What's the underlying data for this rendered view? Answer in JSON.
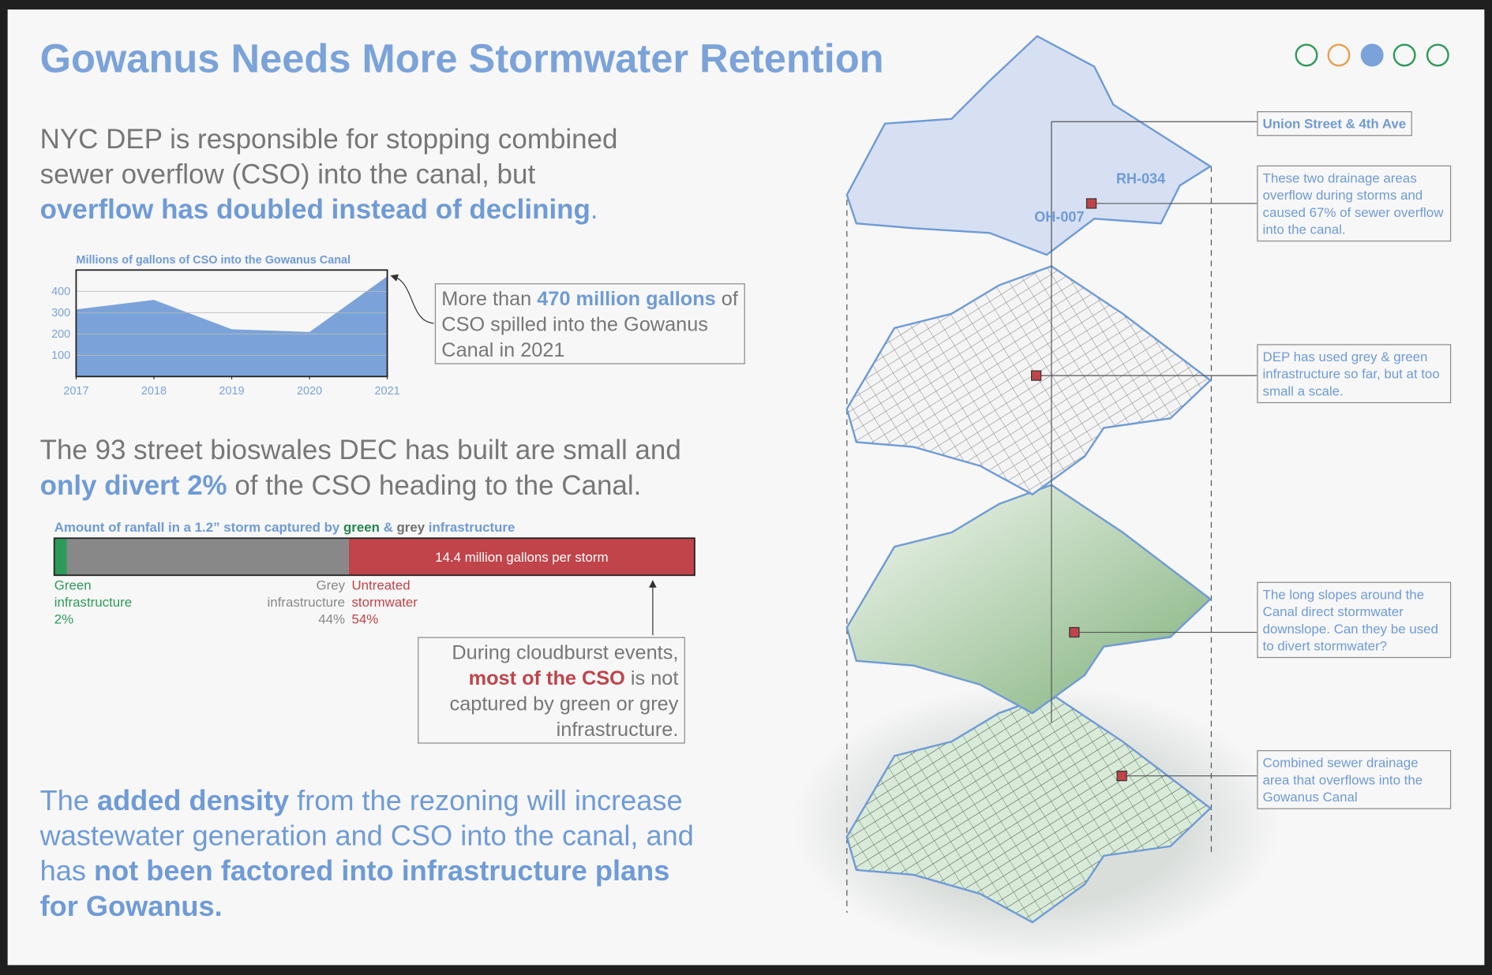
{
  "header": {
    "title": "Gowanus Needs More Stormwater Retention"
  },
  "intro": [
    "NYC DEP is responsible for stopping combined sewer overflow (CSO) into the canal, but ",
    "overflow has doubled instead of declining",
    "."
  ],
  "bioswales": [
    "The 93 street bioswales DEC has built are small and ",
    "only divert 2%",
    " of the CSO heading to the Canal."
  ],
  "density": [
    "The ",
    "added density",
    " from the rezoning will increase wastewater generation and CSO into the canal, and has ",
    "not been factored into infrastructure plans for Gowanus."
  ],
  "callout_cso": [
    "More than ",
    "470 million gallons",
    " of CSO spilled into the Gowanus Canal in 2021"
  ],
  "callout_cloudburst": [
    "During cloudburst events, ",
    "most of the CSO",
    " is not captured by green or grey infrastructure."
  ],
  "map": {
    "labels": [
      "RH-034",
      "OH-007"
    ],
    "callouts": [
      "Union Street & 4th Ave",
      "These two drainage areas overflow during storms and caused 67% of sewer overflow into the canal.",
      "DEP has used grey & green infrastructure so far, but at too small a scale.",
      "The long slopes around the Canal direct stormwater downslope. Can they be used to divert stormwater?",
      "Combined sewer drainage area that overflows into the Gowanus Canal"
    ]
  },
  "chart_data": [
    {
      "type": "area",
      "title": "Millions of gallons of CSO into the Gowanus Canal",
      "x": [
        2017,
        2018,
        2019,
        2020,
        2021
      ],
      "values": [
        315,
        360,
        222,
        209,
        470
      ],
      "color": "#7ba3d9",
      "xlim": [
        2017,
        2021
      ],
      "xticks": [
        2017,
        2018,
        2019,
        2020,
        2021
      ],
      "ylim": [
        0,
        500
      ],
      "yticks": [
        100,
        200,
        300,
        400
      ],
      "grid": true
    },
    {
      "type": "stacked-bar",
      "title_parts": [
        {
          "text": "Amount of ranfall in a 1.2” storm captured by ",
          "color": "#6f9bd6"
        },
        {
          "text": "green",
          "color": "#24864f"
        },
        {
          "text": " & ",
          "color": "#6f9bd6"
        },
        {
          "text": "grey",
          "color": "#707070"
        },
        {
          "text": " infrastructure",
          "color": "#6f9bd6"
        }
      ],
      "xlim": [
        0,
        100
      ],
      "series": [
        {
          "name": "Green infrastructure",
          "color": "#2e9a5a",
          "values": [
            2
          ],
          "value_labels": [
            "2%"
          ]
        },
        {
          "name": "Grey infrastructure",
          "color": "#888888",
          "values": [
            44
          ],
          "value_labels": [
            "44%"
          ]
        },
        {
          "name": "Untreated stormwater",
          "color": "#c0444a",
          "values": [
            54
          ],
          "value_labels": [
            "54%"
          ]
        }
      ],
      "annotation": "14.4 million gallons per storm"
    }
  ]
}
